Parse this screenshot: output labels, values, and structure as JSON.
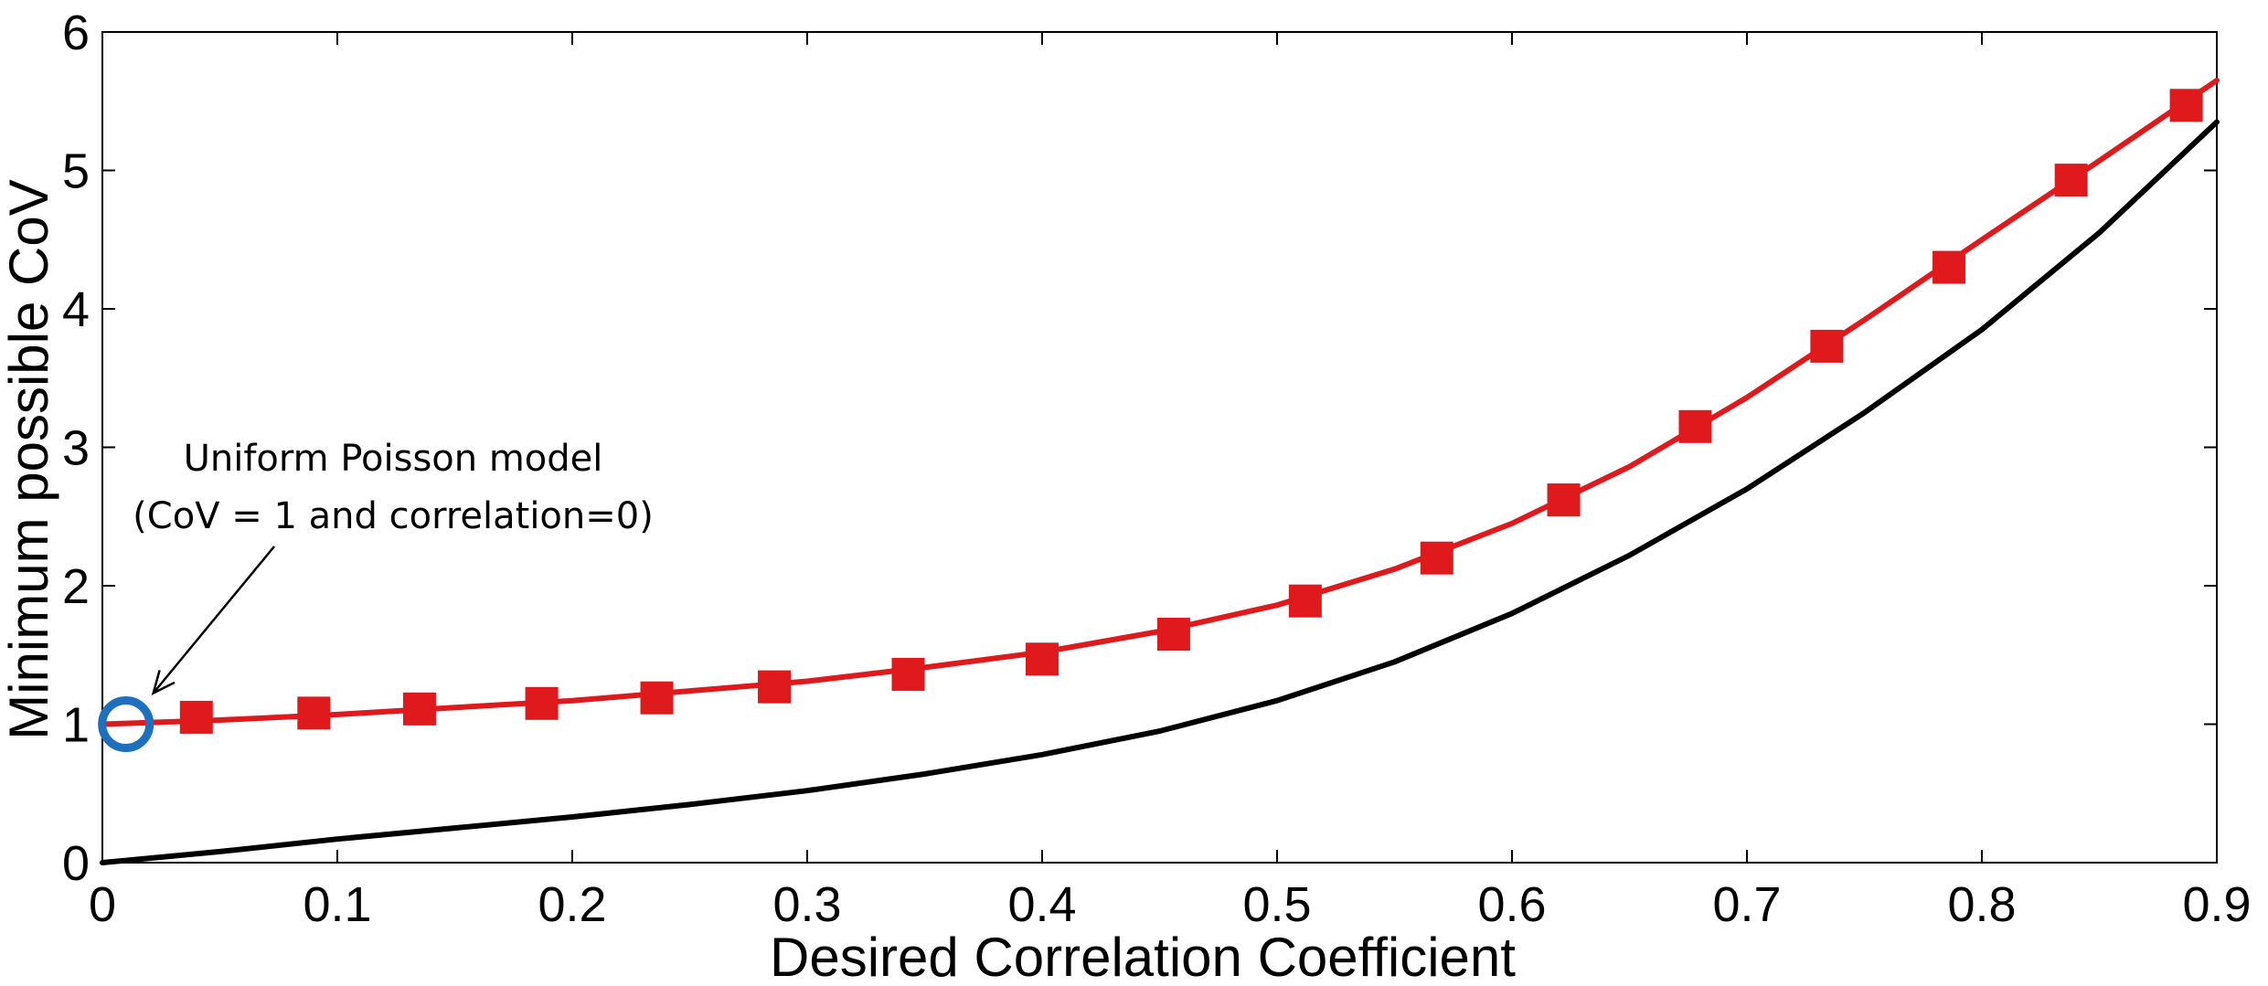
{
  "chart_data": {
    "type": "line",
    "title": "",
    "xlabel": "Desired Correlation Coefficient",
    "ylabel": "Minimum possible CoV",
    "xlim": [
      0,
      0.9
    ],
    "ylim": [
      0,
      6
    ],
    "xticks": [
      "0",
      "0.1",
      "0.2",
      "0.3",
      "0.4",
      "0.5",
      "0.6",
      "0.7",
      "0.8",
      "0.9"
    ],
    "yticks": [
      "0",
      "1",
      "2",
      "3",
      "4",
      "5",
      "6"
    ],
    "grid": false,
    "colors": {
      "red_series": "#e0191d",
      "black_series": "#000000",
      "highlight_circle": "#1f6fbf",
      "axes": "#000000"
    },
    "series": [
      {
        "name": "red",
        "color": "#e0191d",
        "line_x": [
          0,
          0.05,
          0.1,
          0.15,
          0.2,
          0.25,
          0.3,
          0.35,
          0.4,
          0.45,
          0.5,
          0.55,
          0.6,
          0.65,
          0.7,
          0.75,
          0.8,
          0.85,
          0.9
        ],
        "line_y": [
          1.0,
          1.03,
          1.07,
          1.12,
          1.17,
          1.24,
          1.31,
          1.41,
          1.52,
          1.67,
          1.86,
          2.12,
          2.45,
          2.86,
          3.36,
          3.92,
          4.5,
          5.07,
          5.65
        ],
        "marker": "square",
        "marker_x": [
          0.04,
          0.09,
          0.135,
          0.187,
          0.236,
          0.286,
          0.343,
          0.4,
          0.456,
          0.512,
          0.568,
          0.622,
          0.678,
          0.734,
          0.786,
          0.838,
          0.887
        ],
        "marker_y": [
          1.05,
          1.08,
          1.11,
          1.15,
          1.19,
          1.27,
          1.36,
          1.47,
          1.65,
          1.89,
          2.2,
          2.62,
          3.15,
          3.73,
          4.3,
          4.93,
          5.47
        ]
      },
      {
        "name": "black",
        "color": "#000000",
        "line_x": [
          0,
          0.05,
          0.1,
          0.15,
          0.2,
          0.25,
          0.3,
          0.35,
          0.4,
          0.45,
          0.5,
          0.55,
          0.6,
          0.65,
          0.7,
          0.75,
          0.8,
          0.85,
          0.9
        ],
        "line_y": [
          0.0,
          0.08,
          0.17,
          0.25,
          0.33,
          0.42,
          0.52,
          0.64,
          0.78,
          0.95,
          1.17,
          1.45,
          1.8,
          2.22,
          2.7,
          3.25,
          3.85,
          4.55,
          5.35
        ]
      }
    ],
    "annotations": [
      {
        "lines": [
          "Uniform Poisson model",
          "(CoV = 1 and correlation=0)"
        ],
        "target_x": 0.01,
        "target_y": 1.0,
        "highlight_circle": true
      }
    ]
  }
}
